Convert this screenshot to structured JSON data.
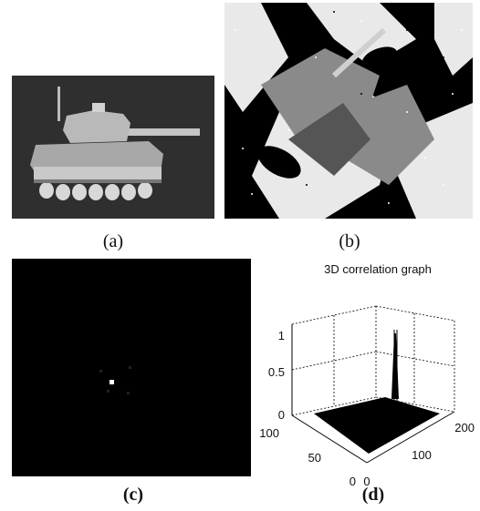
{
  "captions": {
    "a": "(a)",
    "b": "(b)",
    "c": "(c)",
    "d": "(d)"
  },
  "panel_a": {
    "subject": "tank-image"
  },
  "panel_b": {
    "subject": "camouflaged-tank-scene"
  },
  "panel_c": {
    "subject": "correlation-output-plane"
  },
  "chart_data": {
    "type": "surface",
    "title": "3D  correlation graph",
    "z_ticks": [
      "0",
      "0.5",
      "1"
    ],
    "y_ticks": [
      "0",
      "50",
      "100"
    ],
    "x_ticks": [
      "0",
      "100",
      "200"
    ],
    "z_range": [
      0,
      1
    ],
    "x_range": [
      0,
      200
    ],
    "y_range": [
      0,
      100
    ],
    "grid": true,
    "peak": {
      "x": 150,
      "y": 60,
      "z": 1.0
    }
  },
  "colors": {
    "background": "#ffffff",
    "black": "#000000"
  }
}
